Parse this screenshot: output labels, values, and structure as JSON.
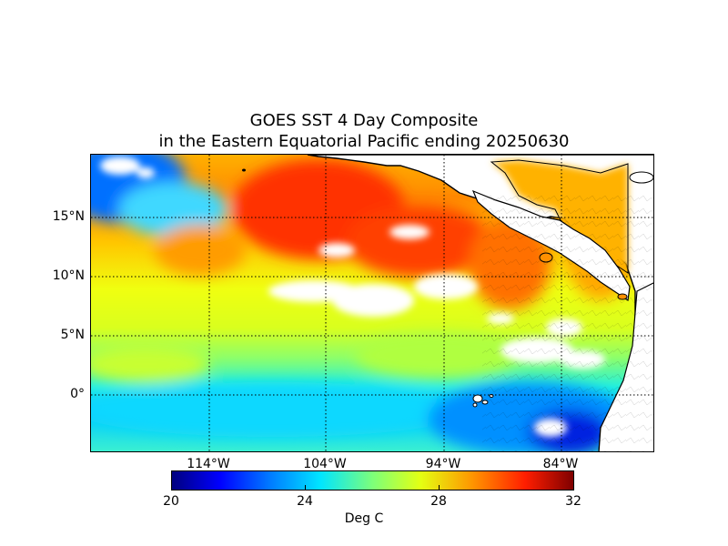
{
  "title_line1": "GOES SST 4 Day Composite",
  "title_line2": "in the Eastern Equatorial Pacific ending 20250630",
  "map": {
    "lat_labels": [
      "15°N",
      "10°N",
      "5°N",
      "0°"
    ],
    "lon_labels": [
      "114°W",
      "104°W",
      "94°W",
      "84°W"
    ],
    "gridlines": "dotted",
    "land_color": "#ffffff",
    "no_data_color": "#ffffff",
    "coastline_color": "#000000"
  },
  "colorbar": {
    "label": "Deg C",
    "ticks": [
      "20",
      "24",
      "28",
      "32"
    ],
    "colormap": "jet",
    "min": 20,
    "max": 32
  }
}
